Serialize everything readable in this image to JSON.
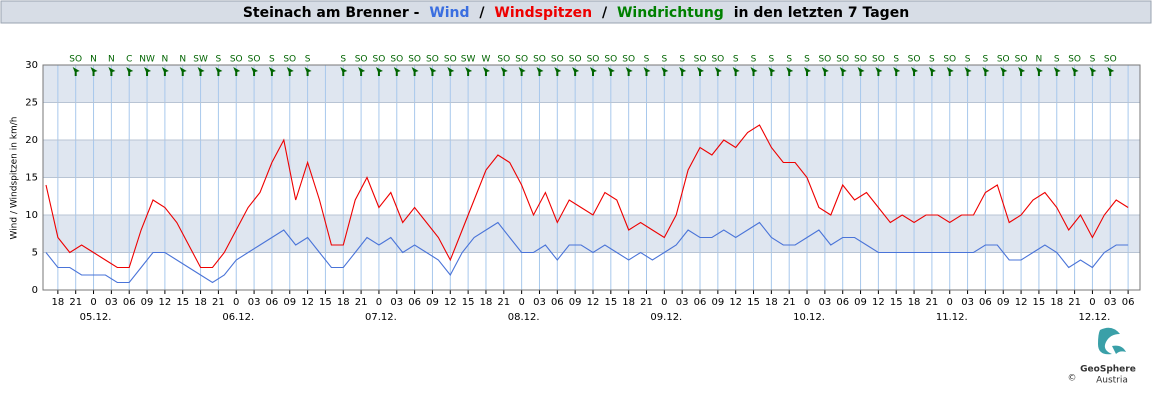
{
  "chart_data": {
    "type": "line",
    "title": {
      "prefix": "Steinach am Brenner -",
      "separator": "/",
      "suffix": "in den letzten 7 Tagen"
    },
    "ylabel": "Wind / Windspitzen in km/h",
    "ylim": [
      0,
      30
    ],
    "yticks": [
      0,
      5,
      10,
      15,
      20,
      25,
      30
    ],
    "grid": true,
    "xlim": [
      "04.12. 15:30",
      "12.12. 08:00"
    ],
    "x": [
      "04.12. 16:00",
      "04.12. 18:00",
      "04.12. 20:00",
      "04.12. 22:00",
      "05.12. 00:00",
      "05.12. 02:00",
      "05.12. 04:00",
      "05.12. 06:00",
      "05.12. 08:00",
      "05.12. 10:00",
      "05.12. 12:00",
      "05.12. 14:00",
      "05.12. 16:00",
      "05.12. 18:00",
      "05.12. 20:00",
      "05.12. 22:00",
      "06.12. 00:00",
      "06.12. 02:00",
      "06.12. 04:00",
      "06.12. 06:00",
      "06.12. 08:00",
      "06.12. 10:00",
      "06.12. 12:00",
      "06.12. 14:00",
      "06.12. 16:00",
      "06.12. 18:00",
      "06.12. 20:00",
      "06.12. 22:00",
      "07.12. 00:00",
      "07.12. 02:00",
      "07.12. 04:00",
      "07.12. 06:00",
      "07.12. 08:00",
      "07.12. 10:00",
      "07.12. 12:00",
      "07.12. 14:00",
      "07.12. 16:00",
      "07.12. 18:00",
      "07.12. 20:00",
      "07.12. 22:00",
      "08.12. 00:00",
      "08.12. 02:00",
      "08.12. 04:00",
      "08.12. 06:00",
      "08.12. 08:00",
      "08.12. 10:00",
      "08.12. 12:00",
      "08.12. 14:00",
      "08.12. 16:00",
      "08.12. 18:00",
      "08.12. 20:00",
      "08.12. 22:00",
      "09.12. 00:00",
      "09.12. 02:00",
      "09.12. 04:00",
      "09.12. 06:00",
      "09.12. 08:00",
      "09.12. 10:00",
      "09.12. 12:00",
      "09.12. 14:00",
      "09.12. 16:00",
      "09.12. 18:00",
      "09.12. 20:00",
      "09.12. 22:00",
      "10.12. 00:00",
      "10.12. 02:00",
      "10.12. 04:00",
      "10.12. 06:00",
      "10.12. 08:00",
      "10.12. 10:00",
      "10.12. 12:00",
      "10.12. 14:00",
      "10.12. 16:00",
      "10.12. 18:00",
      "10.12. 20:00",
      "10.12. 22:00",
      "11.12. 00:00",
      "11.12. 02:00",
      "11.12. 04:00",
      "11.12. 06:00",
      "11.12. 08:00",
      "11.12. 10:00",
      "11.12. 12:00",
      "11.12. 14:00",
      "11.12. 16:00",
      "11.12. 18:00",
      "11.12. 20:00",
      "11.12. 22:00",
      "12.12. 00:00",
      "12.12. 02:00",
      "12.12. 04:00",
      "12.12. 06:00"
    ],
    "series": [
      {
        "name": "Wind",
        "color": "#4a74d8",
        "values": [
          5,
          3,
          3,
          2,
          2,
          2,
          1,
          1,
          3,
          5,
          5,
          4,
          3,
          2,
          1,
          2,
          4,
          5,
          6,
          7,
          8,
          6,
          7,
          5,
          3,
          3,
          5,
          7,
          6,
          7,
          5,
          6,
          5,
          4,
          2,
          5,
          7,
          8,
          9,
          7,
          5,
          5,
          6,
          4,
          6,
          6,
          5,
          6,
          5,
          4,
          5,
          4,
          5,
          6,
          8,
          7,
          7,
          8,
          7,
          8,
          9,
          7,
          6,
          6,
          7,
          8,
          6,
          7,
          7,
          6,
          5,
          5,
          5,
          5,
          5,
          5,
          5,
          5,
          5,
          6,
          6,
          4,
          4,
          5,
          6,
          5,
          3,
          4,
          3,
          5,
          6,
          6
        ]
      },
      {
        "name": "Windspitzen",
        "color": "#ee0000",
        "values": [
          14,
          7,
          5,
          6,
          5,
          4,
          3,
          3,
          8,
          12,
          11,
          9,
          6,
          3,
          3,
          5,
          8,
          11,
          13,
          17,
          20,
          12,
          17,
          12,
          6,
          6,
          12,
          15,
          11,
          13,
          9,
          11,
          9,
          7,
          4,
          8,
          12,
          16,
          18,
          17,
          14,
          10,
          13,
          9,
          12,
          11,
          10,
          13,
          12,
          8,
          9,
          8,
          7,
          10,
          16,
          19,
          18,
          20,
          19,
          21,
          22,
          19,
          17,
          17,
          15,
          11,
          10,
          14,
          12,
          13,
          11,
          9,
          10,
          9,
          10,
          10,
          9,
          10,
          10,
          13,
          14,
          9,
          10,
          12,
          13,
          11,
          8,
          10,
          7,
          10,
          12,
          11
        ]
      }
    ],
    "directions": {
      "name": "Windrichtung",
      "color": "#006400",
      "x": [
        "04.12. 21:00",
        "05.12. 00:00",
        "05.12. 03:00",
        "05.12. 06:00",
        "05.12. 09:00",
        "05.12. 12:00",
        "05.12. 15:00",
        "05.12. 18:00",
        "05.12. 21:00",
        "06.12. 00:00",
        "06.12. 03:00",
        "06.12. 06:00",
        "06.12. 09:00",
        "06.12. 12:00",
        "06.12. 15:00",
        "06.12. 18:00",
        "06.12. 21:00",
        "07.12. 00:00",
        "07.12. 03:00",
        "07.12. 06:00",
        "07.12. 09:00",
        "07.12. 12:00",
        "07.12. 15:00",
        "07.12. 18:00",
        "07.12. 21:00",
        "08.12. 00:00",
        "08.12. 03:00",
        "08.12. 06:00",
        "08.12. 09:00",
        "08.12. 12:00",
        "08.12. 15:00",
        "08.12. 18:00",
        "08.12. 21:00",
        "09.12. 00:00",
        "09.12. 03:00",
        "09.12. 06:00",
        "09.12. 09:00",
        "09.12. 12:00",
        "09.12. 15:00",
        "09.12. 18:00",
        "09.12. 21:00",
        "10.12. 00:00",
        "10.12. 03:00",
        "10.12. 06:00",
        "10.12. 09:00",
        "10.12. 12:00",
        "10.12. 15:00",
        "10.12. 18:00",
        "10.12. 21:00",
        "11.12. 00:00",
        "11.12. 03:00",
        "11.12. 06:00",
        "11.12. 09:00",
        "11.12. 12:00",
        "11.12. 15:00",
        "11.12. 18:00",
        "11.12. 21:00",
        "12.12. 00:00",
        "12.12. 03:00"
      ],
      "labels": [
        "SO",
        "N",
        "N",
        "C",
        "NW",
        "N",
        "N",
        "SW",
        "S",
        "SO",
        "SO",
        "S",
        "SO",
        "S",
        null,
        "S",
        "SO",
        "SO",
        "SO",
        "SO",
        "SO",
        "SO",
        "SW",
        "W",
        "SO",
        "SO",
        "SO",
        "SO",
        "SO",
        "SO",
        "SO",
        "SO",
        "S",
        "S",
        "S",
        "SO",
        "SO",
        "S",
        "S",
        "S",
        "S",
        "S",
        "SO",
        "SO",
        "SO",
        "SO",
        "S",
        "SO",
        "S",
        "SO",
        "S",
        "S",
        "SO",
        "SO",
        "N",
        "S",
        "SO",
        "S",
        "SO"
      ]
    },
    "xticks": [
      {
        "value": "04.12. 18:00",
        "label": "18"
      },
      {
        "value": "04.12. 21:00",
        "label": "21"
      },
      {
        "value": "05.12. 00:00",
        "label": "0"
      },
      {
        "value": "05.12. 03:00",
        "label": "03"
      },
      {
        "value": "05.12. 06:00",
        "label": "06"
      },
      {
        "value": "05.12. 09:00",
        "label": "09"
      },
      {
        "value": "05.12. 12:00",
        "label": "12"
      },
      {
        "value": "05.12. 15:00",
        "label": "15"
      },
      {
        "value": "05.12. 18:00",
        "label": "18"
      },
      {
        "value": "05.12. 21:00",
        "label": "21"
      },
      {
        "value": "06.12. 00:00",
        "label": "0"
      },
      {
        "value": "06.12. 03:00",
        "label": "03"
      },
      {
        "value": "06.12. 06:00",
        "label": "06"
      },
      {
        "value": "06.12. 09:00",
        "label": "09"
      },
      {
        "value": "06.12. 12:00",
        "label": "12"
      },
      {
        "value": "06.12. 15:00",
        "label": "15"
      },
      {
        "value": "06.12. 18:00",
        "label": "18"
      },
      {
        "value": "06.12. 21:00",
        "label": "21"
      },
      {
        "value": "07.12. 00:00",
        "label": "0"
      },
      {
        "value": "07.12. 03:00",
        "label": "03"
      },
      {
        "value": "07.12. 06:00",
        "label": "06"
      },
      {
        "value": "07.12. 09:00",
        "label": "09"
      },
      {
        "value": "07.12. 12:00",
        "label": "12"
      },
      {
        "value": "07.12. 15:00",
        "label": "15"
      },
      {
        "value": "07.12. 18:00",
        "label": "18"
      },
      {
        "value": "07.12. 21:00",
        "label": "21"
      },
      {
        "value": "08.12. 00:00",
        "label": "0"
      },
      {
        "value": "08.12. 03:00",
        "label": "03"
      },
      {
        "value": "08.12. 06:00",
        "label": "06"
      },
      {
        "value": "08.12. 09:00",
        "label": "09"
      },
      {
        "value": "08.12. 12:00",
        "label": "12"
      },
      {
        "value": "08.12. 15:00",
        "label": "15"
      },
      {
        "value": "08.12. 18:00",
        "label": "18"
      },
      {
        "value": "08.12. 21:00",
        "label": "21"
      },
      {
        "value": "09.12. 00:00",
        "label": "0"
      },
      {
        "value": "09.12. 03:00",
        "label": "03"
      },
      {
        "value": "09.12. 06:00",
        "label": "06"
      },
      {
        "value": "09.12. 09:00",
        "label": "09"
      },
      {
        "value": "09.12. 12:00",
        "label": "12"
      },
      {
        "value": "09.12. 15:00",
        "label": "15"
      },
      {
        "value": "09.12. 18:00",
        "label": "18"
      },
      {
        "value": "09.12. 21:00",
        "label": "21"
      },
      {
        "value": "10.12. 00:00",
        "label": "0"
      },
      {
        "value": "10.12. 03:00",
        "label": "03"
      },
      {
        "value": "10.12. 06:00",
        "label": "06"
      },
      {
        "value": "10.12. 09:00",
        "label": "09"
      },
      {
        "value": "10.12. 12:00",
        "label": "12"
      },
      {
        "value": "10.12. 15:00",
        "label": "15"
      },
      {
        "value": "10.12. 18:00",
        "label": "18"
      },
      {
        "value": "10.12. 21:00",
        "label": "21"
      },
      {
        "value": "11.12. 00:00",
        "label": "0"
      },
      {
        "value": "11.12. 03:00",
        "label": "03"
      },
      {
        "value": "11.12. 06:00",
        "label": "06"
      },
      {
        "value": "11.12. 09:00",
        "label": "09"
      },
      {
        "value": "11.12. 12:00",
        "label": "12"
      },
      {
        "value": "11.12. 15:00",
        "label": "15"
      },
      {
        "value": "11.12. 18:00",
        "label": "18"
      },
      {
        "value": "11.12. 21:00",
        "label": "21"
      },
      {
        "value": "12.12. 00:00",
        "label": "0"
      },
      {
        "value": "12.12. 03:00",
        "label": "03"
      },
      {
        "value": "12.12. 06:00",
        "label": "06"
      }
    ],
    "date_labels": [
      {
        "value": "05.12. 00:00",
        "label": "05.12."
      },
      {
        "value": "06.12. 00:00",
        "label": "06.12."
      },
      {
        "value": "07.12. 00:00",
        "label": "07.12."
      },
      {
        "value": "08.12. 00:00",
        "label": "08.12."
      },
      {
        "value": "09.12. 00:00",
        "label": "09.12."
      },
      {
        "value": "10.12. 00:00",
        "label": "10.12."
      },
      {
        "value": "11.12. 00:00",
        "label": "11.12."
      },
      {
        "value": "12.12. 00:00",
        "label": "12.12."
      }
    ],
    "logo": {
      "name": "GeoSphere",
      "sub": "Austria",
      "copyright": "©"
    }
  }
}
